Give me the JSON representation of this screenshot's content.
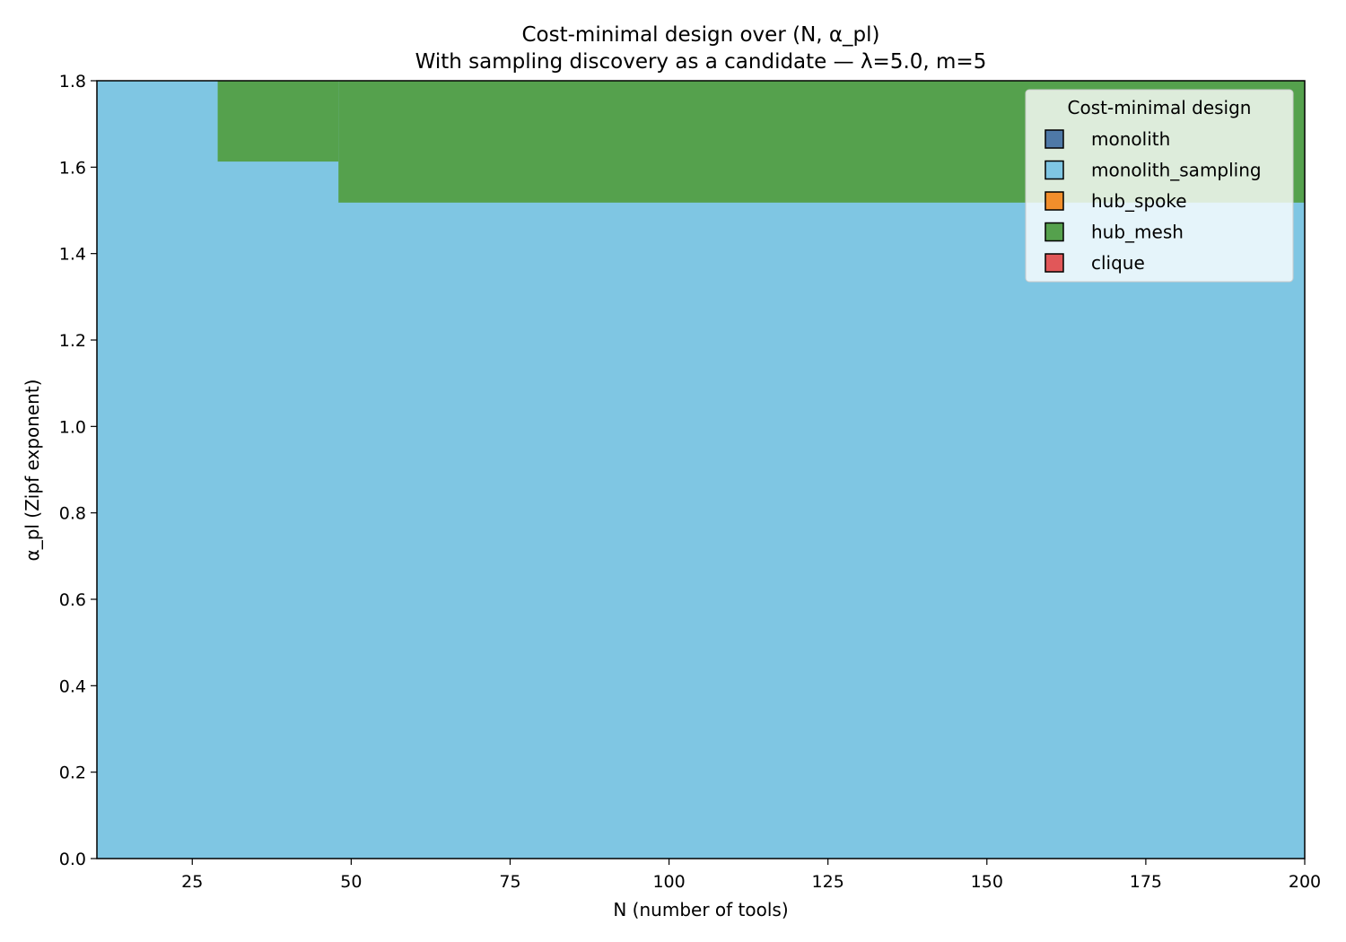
{
  "chart_data": {
    "type": "heatmap",
    "title": "Cost-minimal design over (N, α_pl)",
    "subtitle": "With sampling discovery as a candidate — λ=5.0, m=5",
    "xlabel": "N (number of tools)",
    "ylabel": "α_pl (Zipf exponent)",
    "xlim": [
      10,
      200
    ],
    "ylim": [
      0.0,
      1.8
    ],
    "xticks": [
      25,
      50,
      75,
      100,
      125,
      150,
      175,
      200
    ],
    "yticks": [
      "0.0",
      "0.2",
      "0.4",
      "0.6",
      "0.8",
      "1.0",
      "1.2",
      "1.4",
      "1.6",
      "1.8"
    ],
    "grid": false,
    "legend": {
      "title": "Cost-minimal design",
      "placement": "top-right",
      "entries": [
        {
          "name": "monolith",
          "color": "#4e79a7"
        },
        {
          "name": "monolith_sampling",
          "color": "#7fc6e3"
        },
        {
          "name": "hub_spoke",
          "color": "#f28e2b"
        },
        {
          "name": "hub_mesh",
          "color": "#55a14d"
        },
        {
          "name": "clique",
          "color": "#e15759"
        }
      ]
    },
    "regions": [
      {
        "design": "monolith_sampling",
        "x": [
          10,
          200
        ],
        "y": [
          0.0,
          1.8
        ]
      },
      {
        "design": "hub_mesh",
        "x": [
          29,
          48
        ],
        "y": [
          1.613,
          1.8
        ]
      },
      {
        "design": "hub_mesh",
        "x": [
          48,
          200
        ],
        "y": [
          1.518,
          1.8
        ]
      }
    ]
  }
}
